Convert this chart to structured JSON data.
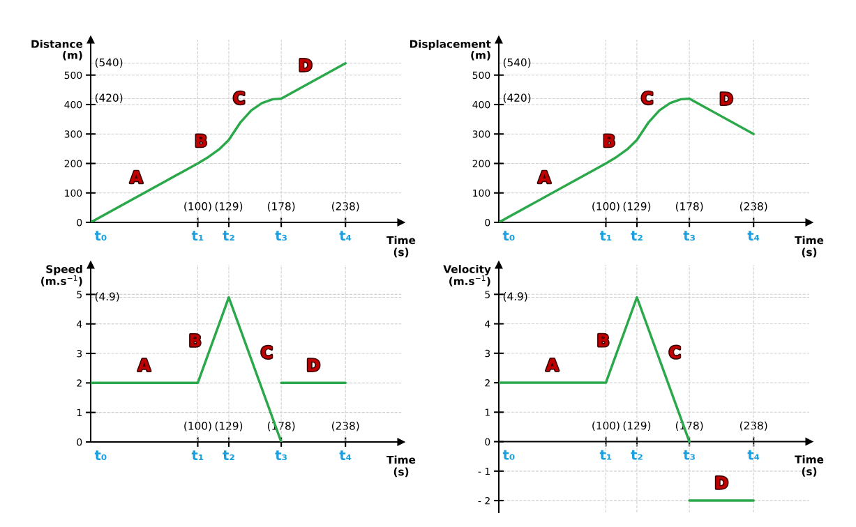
{
  "chart_data": [
    {
      "type": "line",
      "xlabel": "Time\n(s)",
      "ylabel": "Distance\n(m)",
      "x": [
        0,
        100,
        110,
        120,
        129,
        140,
        150,
        160,
        170,
        178,
        238
      ],
      "values": [
        0,
        200,
        222,
        248,
        280,
        340,
        380,
        405,
        418,
        420,
        540
      ],
      "color": "#2aa84a",
      "xlim": [
        0,
        290
      ],
      "ylim": [
        0,
        620
      ],
      "xticks": [
        {
          "value": 100,
          "label": "(100)"
        },
        {
          "value": 129,
          "label": "(129)"
        },
        {
          "value": 178,
          "label": "(178)"
        },
        {
          "value": 238,
          "label": "(238)"
        }
      ],
      "yticks": [
        0,
        100,
        200,
        300,
        400,
        500
      ],
      "grid": "y",
      "ref_lines": [
        {
          "axis": "y",
          "value": 540,
          "label": "(540)"
        },
        {
          "axis": "y",
          "value": 420,
          "label": "(420)"
        },
        {
          "axis": "x",
          "value": 100,
          "label": "t₁"
        },
        {
          "axis": "x",
          "value": 129,
          "label": "t₂"
        },
        {
          "axis": "x",
          "value": 178,
          "label": "t₃"
        },
        {
          "axis": "x",
          "value": 238,
          "label": "t₄"
        }
      ],
      "annotations": [
        "t₀",
        {
          "text": "A",
          "x": 50,
          "y": 100
        },
        {
          "text": "B",
          "x": 112,
          "y": 227
        },
        {
          "text": "C",
          "x": 150,
          "y": 380
        },
        {
          "text": "D",
          "x": 208,
          "y": 480
        }
      ]
    },
    {
      "type": "line",
      "xlabel": "Time\n(s)",
      "ylabel": "Displacement\n(m)",
      "x": [
        0,
        100,
        110,
        120,
        129,
        140,
        150,
        160,
        170,
        178,
        238
      ],
      "values": [
        0,
        200,
        222,
        248,
        280,
        340,
        380,
        405,
        418,
        420,
        300
      ],
      "color": "#2aa84a",
      "xlim": [
        0,
        290
      ],
      "ylim": [
        0,
        620
      ],
      "xticks": [
        {
          "value": 100,
          "label": "(100)"
        },
        {
          "value": 129,
          "label": "(129)"
        },
        {
          "value": 178,
          "label": "(178)"
        },
        {
          "value": 238,
          "label": "(238)"
        }
      ],
      "yticks": [
        0,
        100,
        200,
        300,
        400,
        500
      ],
      "grid": "y",
      "ref_lines": [
        {
          "axis": "y",
          "value": 540,
          "label": "(540)"
        },
        {
          "axis": "y",
          "value": 420,
          "label": "(420)"
        },
        {
          "axis": "x",
          "value": 100,
          "label": "t₁"
        },
        {
          "axis": "x",
          "value": 129,
          "label": "t₂"
        },
        {
          "axis": "x",
          "value": 178,
          "label": "t₃"
        },
        {
          "axis": "x",
          "value": 238,
          "label": "t₄"
        }
      ],
      "annotations": [
        "t₀",
        {
          "text": "A",
          "x": 50,
          "y": 100
        },
        {
          "text": "B",
          "x": 112,
          "y": 227
        },
        {
          "text": "C",
          "x": 150,
          "y": 380
        },
        {
          "text": "D",
          "x": 205,
          "y": 366
        }
      ]
    },
    {
      "type": "line",
      "xlabel": "Time\n(s)",
      "ylabel": "Speed\n(m.s$^{−1}$)",
      "series": [
        {
          "color": "#2aa84a",
          "x": [
            0,
            100,
            129,
            178
          ],
          "values": [
            2,
            2,
            4.9,
            0
          ]
        },
        {
          "color": "#2aa84a",
          "x": [
            178,
            238
          ],
          "values": [
            2,
            2
          ]
        }
      ],
      "xlim": [
        0,
        290
      ],
      "ylim": [
        0,
        6
      ],
      "xticks": [
        {
          "value": 100,
          "label": "(100)"
        },
        {
          "value": 129,
          "label": "(129)"
        },
        {
          "value": 178,
          "label": "(178)"
        },
        {
          "value": 238,
          "label": "(238)"
        }
      ],
      "yticks": [
        0,
        1,
        2,
        3,
        4,
        5
      ],
      "grid": "y",
      "ref_lines": [
        {
          "axis": "y",
          "value": 4.9,
          "label": "(4.9)"
        },
        {
          "axis": "x",
          "value": 100,
          "label": "t₁"
        },
        {
          "axis": "x",
          "value": 129,
          "label": "t₂"
        },
        {
          "axis": "x",
          "value": 178,
          "label": "t₃"
        },
        {
          "axis": "x",
          "value": 238,
          "label": "t₄"
        }
      ],
      "annotations": [
        "t₀",
        {
          "text": "A",
          "x": 50,
          "y": 2
        },
        {
          "text": "B",
          "x": 112,
          "y": 3.2
        },
        {
          "text": "C",
          "x": 150,
          "y": 2.8
        },
        {
          "text": "D",
          "x": 208,
          "y": 2
        }
      ]
    },
    {
      "type": "line",
      "xlabel": "Time\n(s)",
      "ylabel": "Velocity\n(m.s$^{−1}$)",
      "series": [
        {
          "color": "#2aa84a",
          "x": [
            0,
            100,
            129,
            178
          ],
          "values": [
            2,
            2,
            4.9,
            0
          ]
        },
        {
          "color": "#2aa84a",
          "x": [
            178,
            238
          ],
          "values": [
            -2,
            -2
          ]
        }
      ],
      "xlim": [
        0,
        290
      ],
      "ylim": [
        -2.4,
        6
      ],
      "xticks": [
        {
          "value": 100,
          "label": "(100)"
        },
        {
          "value": 129,
          "label": "(129)"
        },
        {
          "value": 178,
          "label": "(178)"
        },
        {
          "value": 238,
          "label": "(238)"
        }
      ],
      "yticks": [
        {
          "value": -2,
          "label": "- 2"
        },
        {
          "value": -1,
          "label": "- 1"
        },
        0,
        1,
        2,
        3,
        4,
        5
      ],
      "grid": "y",
      "ref_lines": [
        {
          "axis": "y",
          "value": 4.9,
          "label": "(4.9)"
        },
        {
          "axis": "x",
          "value": 100,
          "label": "t₁"
        },
        {
          "axis": "x",
          "value": 129,
          "label": "t₂"
        },
        {
          "axis": "x",
          "value": 178,
          "label": "t₃"
        },
        {
          "axis": "x",
          "value": 238,
          "label": "t₄"
        }
      ],
      "annotations": [
        "t₀",
        {
          "text": "A",
          "x": 50,
          "y": 2
        },
        {
          "text": "B",
          "x": 112,
          "y": 3.2
        },
        {
          "text": "C",
          "x": 150,
          "y": 2.8
        },
        {
          "text": "D",
          "x": 208,
          "y": -2
        }
      ]
    }
  ]
}
